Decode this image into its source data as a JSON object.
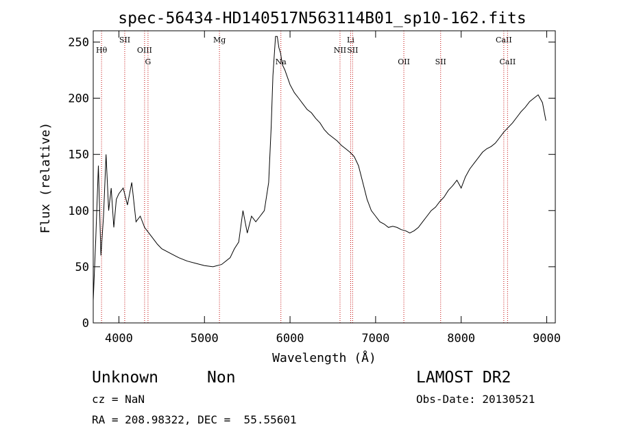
{
  "chart_data": {
    "type": "line",
    "title": "spec-56434-HD140517N563114B01_sp10-162.fits",
    "xlabel": "Wavelength (Å)",
    "ylabel": "Flux (relative)",
    "xlim": [
      3700,
      9100
    ],
    "ylim": [
      0,
      260
    ],
    "xticks": [
      4000,
      5000,
      6000,
      7000,
      8000,
      9000
    ],
    "yticks": [
      0,
      50,
      100,
      150,
      200,
      250
    ],
    "grid": false,
    "series": [
      {
        "x": [
          3700,
          3730,
          3760,
          3790,
          3820,
          3850,
          3880,
          3910,
          3940,
          3970,
          4000,
          4050,
          4100,
          4150,
          4200,
          4250,
          4300,
          4350,
          4400,
          4450,
          4500,
          4600,
          4700,
          4800,
          4900,
          5000,
          5100,
          5200,
          5300,
          5350,
          5400,
          5450,
          5500,
          5550,
          5600,
          5650,
          5700,
          5750,
          5780,
          5800,
          5830,
          5850,
          5870,
          5890,
          5910,
          5940,
          6000,
          6050,
          6100,
          6150,
          6200,
          6250,
          6300,
          6350,
          6400,
          6450,
          6500,
          6550,
          6600,
          6650,
          6700,
          6750,
          6800,
          6850,
          6900,
          6950,
          7000,
          7050,
          7100,
          7150,
          7200,
          7250,
          7300,
          7350,
          7400,
          7450,
          7500,
          7550,
          7600,
          7650,
          7700,
          7750,
          7800,
          7850,
          7900,
          7950,
          8000,
          8050,
          8100,
          8150,
          8200,
          8250,
          8300,
          8350,
          8400,
          8450,
          8500,
          8550,
          8600,
          8650,
          8700,
          8750,
          8800,
          8850,
          8900,
          8950,
          8990
        ],
        "y": [
          20,
          75,
          140,
          60,
          95,
          150,
          100,
          120,
          85,
          110,
          115,
          120,
          105,
          125,
          90,
          95,
          85,
          80,
          75,
          70,
          66,
          62,
          58,
          55,
          53,
          51,
          50,
          52,
          58,
          66,
          72,
          100,
          80,
          95,
          90,
          95,
          100,
          125,
          175,
          220,
          255,
          255,
          245,
          240,
          230,
          225,
          212,
          205,
          200,
          195,
          190,
          187,
          182,
          178,
          172,
          168,
          165,
          162,
          158,
          155,
          152,
          148,
          140,
          125,
          110,
          100,
          95,
          90,
          88,
          85,
          86,
          85,
          83,
          82,
          80,
          82,
          85,
          90,
          95,
          100,
          103,
          108,
          112,
          118,
          122,
          127,
          120,
          130,
          137,
          142,
          147,
          152,
          155,
          157,
          160,
          165,
          170,
          174,
          178,
          183,
          188,
          192,
          197,
          200,
          203,
          196,
          180
        ]
      }
    ],
    "lines": [
      {
        "label": "Hθ",
        "x": 3797,
        "row": 1
      },
      {
        "label": "SII",
        "x": 4068,
        "row": 0
      },
      {
        "label": "OIII",
        "x": 4300,
        "row": 1
      },
      {
        "label": "G",
        "x": 4340,
        "row": 2
      },
      {
        "label": "Mg",
        "x": 5175,
        "row": 0
      },
      {
        "label": "Na",
        "x": 5893,
        "row": 2
      },
      {
        "label": "Li",
        "x": 6708,
        "row": 0
      },
      {
        "label": "NII",
        "x": 6584,
        "row": 1
      },
      {
        "label": "SII",
        "x": 6731,
        "row": 1
      },
      {
        "label": "OII",
        "x": 7330,
        "row": 2
      },
      {
        "label": "SII",
        "x": 7760,
        "row": 2
      },
      {
        "label": "CaII",
        "x": 8498,
        "row": 0
      },
      {
        "label": "CaII",
        "x": 8542,
        "row": 2
      }
    ]
  },
  "info": {
    "class": "Unknown",
    "subclass": "Non",
    "survey": "LAMOST DR2",
    "cz": "cz = NaN",
    "obs_date": "Obs-Date: 20130521",
    "coords": "RA = 208.98322, DEC =  55.55601"
  }
}
